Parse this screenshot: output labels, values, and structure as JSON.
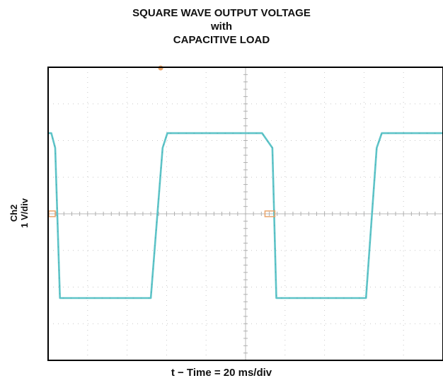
{
  "chart_data": {
    "type": "line",
    "title": [
      "SQUARE WAVE OUTPUT VOLTAGE",
      "with",
      "CAPACITIVE LOAD"
    ],
    "ylabel": [
      "Ch2",
      "1 V/div"
    ],
    "xlabel": "t − Time = 20 ms/div",
    "x_unit": "div",
    "y_unit": "div",
    "xlim": [
      0,
      10
    ],
    "ylim": [
      -4,
      4
    ],
    "grid": true,
    "colors": {
      "trace": "#5ec4c8",
      "marker": "#e8a36a",
      "grid": "#c8c8c8",
      "frame": "#000000"
    },
    "series": [
      {
        "x": [
          0,
          0.08,
          0.18,
          0.3,
          2.6,
          2.9,
          3.02,
          5.42,
          5.68,
          5.78,
          8.05,
          8.32,
          8.45,
          10.0
        ],
        "y": [
          2.2,
          2.2,
          1.8,
          -2.3,
          -2.3,
          1.8,
          2.2,
          2.2,
          1.8,
          -2.3,
          -2.3,
          1.8,
          2.2,
          2.2
        ]
      }
    ],
    "markers": {
      "trigger_top_x": 2.85,
      "ground_left_y": 0,
      "ground_mid_x": 5.42
    }
  }
}
